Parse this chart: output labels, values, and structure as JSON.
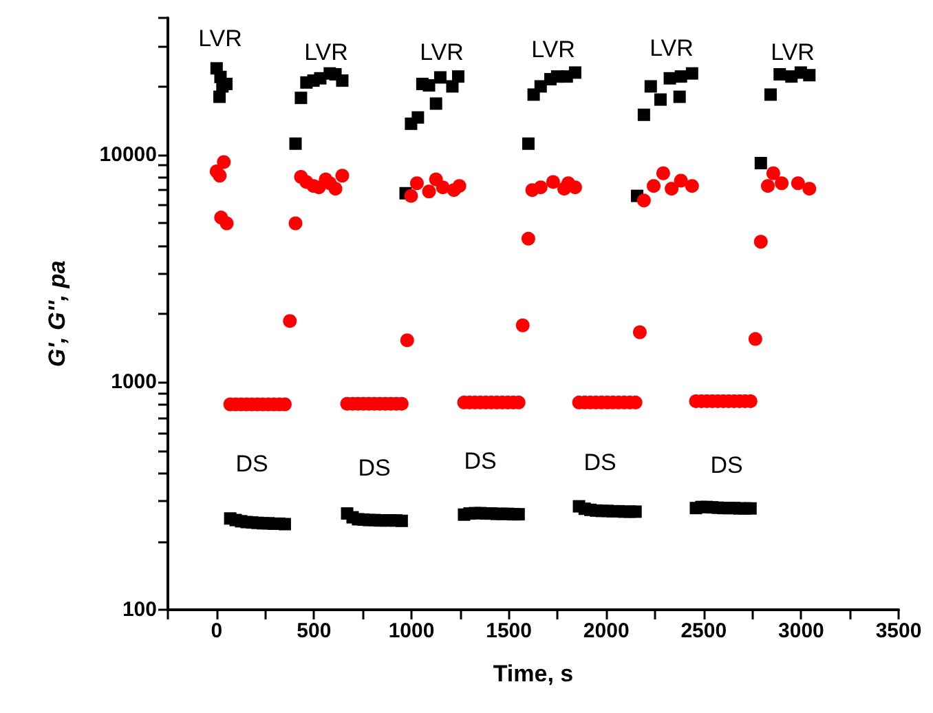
{
  "chart_data": {
    "type": "scatter",
    "xlabel": "Time, s",
    "ylabel": "G', G'', pa",
    "log": "y",
    "grid": false,
    "xlim": [
      -250,
      3500
    ],
    "xticks": [
      {
        "value": -250,
        "label": null
      },
      0,
      {
        "value": 250,
        "label": null
      },
      500,
      {
        "value": 750,
        "label": null
      },
      1000,
      {
        "value": 1250,
        "label": null
      },
      1500,
      {
        "value": 1750,
        "label": null
      },
      2000,
      {
        "value": 2250,
        "label": null
      },
      2500,
      {
        "value": 2750,
        "label": null
      },
      3000,
      {
        "value": 3250,
        "label": null
      },
      3500
    ],
    "ylim": [
      100,
      40000
    ],
    "yticks": [
      100,
      {
        "value": 200,
        "label": null
      },
      {
        "value": 300,
        "label": null
      },
      {
        "value": 400,
        "label": null
      },
      {
        "value": 500,
        "label": null
      },
      {
        "value": 600,
        "label": null
      },
      {
        "value": 700,
        "label": null
      },
      {
        "value": 800,
        "label": null
      },
      {
        "value": 900,
        "label": null
      },
      1000,
      {
        "value": 2000,
        "label": null
      },
      {
        "value": 3000,
        "label": null
      },
      {
        "value": 4000,
        "label": null
      },
      {
        "value": 5000,
        "label": null
      },
      {
        "value": 6000,
        "label": null
      },
      {
        "value": 7000,
        "label": null
      },
      {
        "value": 8000,
        "label": null
      },
      {
        "value": 9000,
        "label": null
      },
      10000,
      {
        "value": 20000,
        "label": null
      },
      {
        "value": 30000,
        "label": null
      },
      {
        "value": 40000,
        "label": null
      }
    ],
    "series": [
      {
        "color": "#000000",
        "marker": "square",
        "x": [
          0,
          15,
          20,
          30,
          50,
          70,
          98,
          126,
          154,
          182,
          210,
          238,
          266,
          294,
          322,
          350,
          405,
          433,
          461,
          497,
          532,
          581,
          610,
          645,
          670,
          698,
          726,
          754,
          782,
          810,
          838,
          866,
          894,
          922,
          950,
          970,
          998,
          1033,
          1056,
          1090,
          1126,
          1148,
          1210,
          1240,
          1270,
          1298,
          1326,
          1354,
          1382,
          1410,
          1438,
          1466,
          1494,
          1522,
          1550,
          1600,
          1627,
          1663,
          1713,
          1748,
          1797,
          1840,
          1860,
          1889,
          1918,
          1947,
          1976,
          2005,
          2034,
          2063,
          2092,
          2121,
          2150,
          2158,
          2193,
          2228,
          2278,
          2326,
          2376,
          2383,
          2440,
          2460,
          2488,
          2516,
          2544,
          2572,
          2600,
          2628,
          2656,
          2684,
          2712,
          2740,
          2793,
          2843,
          2890,
          2950,
          2998,
          3042
        ],
        "values": [
          24000,
          18000,
          22000,
          20000,
          20500,
          252,
          248,
          245,
          243,
          242,
          241,
          240,
          240,
          239,
          239,
          238,
          11200,
          17800,
          20800,
          21200,
          21700,
          22800,
          22600,
          21200,
          265,
          255,
          250,
          249,
          248,
          248,
          247,
          247,
          247,
          247,
          246,
          6780,
          13700,
          14600,
          20500,
          20200,
          16800,
          21900,
          20000,
          22100,
          262,
          265,
          266,
          266,
          265,
          265,
          264,
          264,
          264,
          263,
          263,
          11200,
          18400,
          20000,
          21500,
          22100,
          22100,
          23000,
          285,
          278,
          275,
          273,
          272,
          272,
          271,
          271,
          270,
          270,
          270,
          6600,
          15000,
          20000,
          17500,
          21700,
          18000,
          22100,
          22800,
          280,
          283,
          283,
          282,
          281,
          280,
          280,
          280,
          279,
          279,
          279,
          9200,
          18400,
          22600,
          22100,
          23000,
          22400
        ]
      },
      {
        "color": "#ff0000",
        "marker": "circle",
        "x": [
          0,
          16,
          23,
          37,
          52,
          70,
          98,
          126,
          154,
          182,
          210,
          238,
          266,
          294,
          322,
          350,
          376,
          405,
          433,
          461,
          497,
          525,
          560,
          581,
          610,
          645,
          670,
          698,
          726,
          754,
          782,
          810,
          838,
          866,
          894,
          922,
          950,
          978,
          998,
          1028,
          1090,
          1126,
          1161,
          1218,
          1246,
          1270,
          1298,
          1326,
          1354,
          1382,
          1410,
          1438,
          1466,
          1494,
          1522,
          1550,
          1571,
          1600,
          1620,
          1663,
          1727,
          1784,
          1805,
          1840,
          1860,
          1889,
          1918,
          1947,
          1976,
          2005,
          2034,
          2063,
          2092,
          2121,
          2150,
          2172,
          2193,
          2243,
          2292,
          2335,
          2383,
          2440,
          2460,
          2488,
          2516,
          2544,
          2572,
          2600,
          2628,
          2656,
          2684,
          2712,
          2740,
          2765,
          2793,
          2829,
          2857,
          2900,
          2984,
          3042
        ],
        "values": [
          8460,
          8100,
          5300,
          9300,
          5000,
          800,
          800,
          800,
          800,
          800,
          800,
          800,
          800,
          800,
          800,
          800,
          1860,
          5000,
          8000,
          7600,
          7300,
          7200,
          7800,
          7500,
          7100,
          8100,
          805,
          805,
          805,
          805,
          805,
          805,
          805,
          805,
          805,
          805,
          805,
          1530,
          6600,
          7500,
          6900,
          7800,
          7200,
          7000,
          7300,
          815,
          815,
          815,
          815,
          815,
          815,
          815,
          815,
          815,
          815,
          815,
          1780,
          4280,
          7000,
          7200,
          7600,
          7100,
          7500,
          7200,
          815,
          815,
          815,
          815,
          815,
          815,
          815,
          815,
          815,
          815,
          815,
          1660,
          6300,
          7300,
          8300,
          7100,
          7700,
          7300,
          826,
          826,
          826,
          826,
          826,
          826,
          826,
          826,
          826,
          826,
          826,
          1550,
          4150,
          7300,
          8300,
          7500,
          7500,
          7100
        ]
      }
    ],
    "annotations": [
      "LVR",
      "LVR",
      "LVR",
      "LVR",
      "LVR",
      "LVR",
      "DS",
      "DS",
      "DS",
      "DS",
      "DS"
    ]
  }
}
